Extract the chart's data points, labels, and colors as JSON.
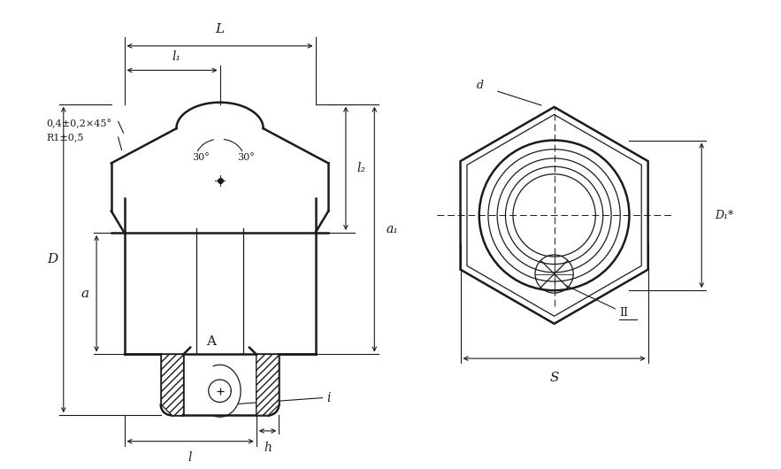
{
  "bg_color": "#ffffff",
  "line_color": "#1a1a1a",
  "fig_width": 8.83,
  "fig_height": 5.3,
  "annotations_left": {
    "L_label": "L",
    "l1_label": "l₁",
    "l2_label": "l₂",
    "D_label": "D",
    "a_label": "a",
    "a1_label": "a₁",
    "A_label": "A",
    "l_label": "l",
    "h_label": "h",
    "i_label": "i",
    "chamfer_label": "0,4±0,2×45°",
    "radius_label": "R1±0,5",
    "angle1_label": "30°",
    "angle2_label": "30°"
  },
  "annotations_right": {
    "d_label": "d",
    "D1_label": "D₁*",
    "S_label": "S",
    "II_label": "Π"
  }
}
